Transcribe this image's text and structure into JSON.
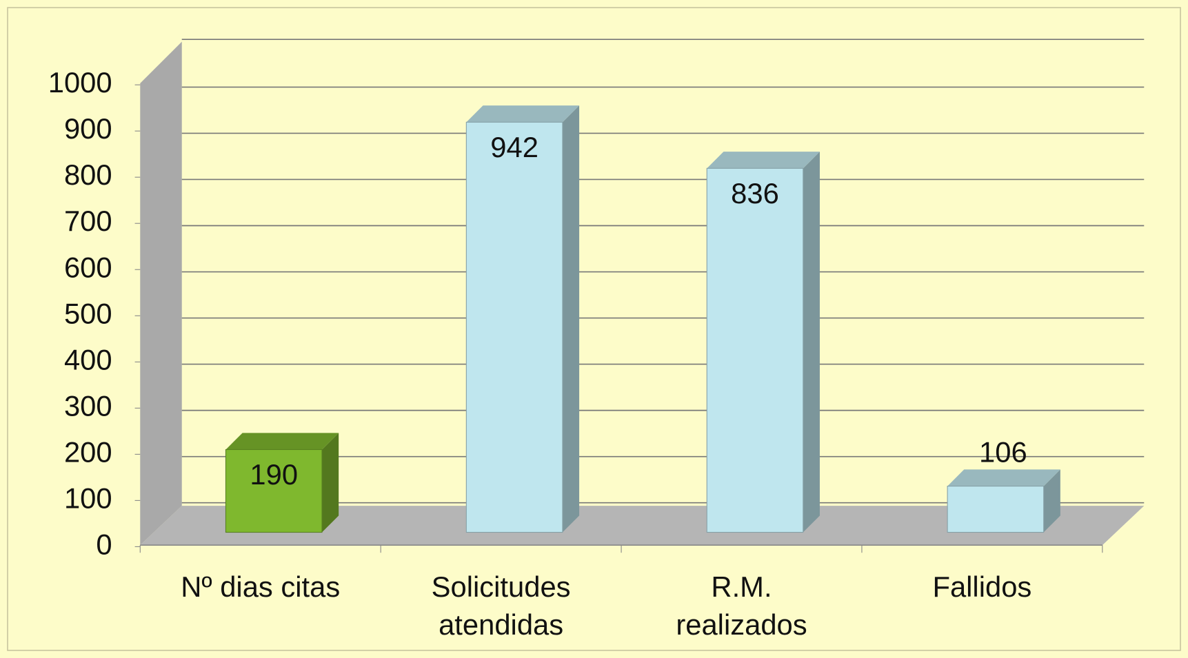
{
  "chart_data": {
    "type": "bar3d",
    "categories": [
      "Nº dias citas",
      "Solicitudes atendidas",
      "R.M. realizados",
      "Fallidos"
    ],
    "values": [
      190,
      942,
      836,
      106
    ],
    "colors": [
      "#7fb82e",
      "#bfe6ee",
      "#bfe6ee",
      "#bfe6ee"
    ],
    "ylim": [
      0,
      1000
    ],
    "yticks": [
      0,
      100,
      200,
      300,
      400,
      500,
      600,
      700,
      800,
      900,
      1000
    ],
    "grid": true
  }
}
